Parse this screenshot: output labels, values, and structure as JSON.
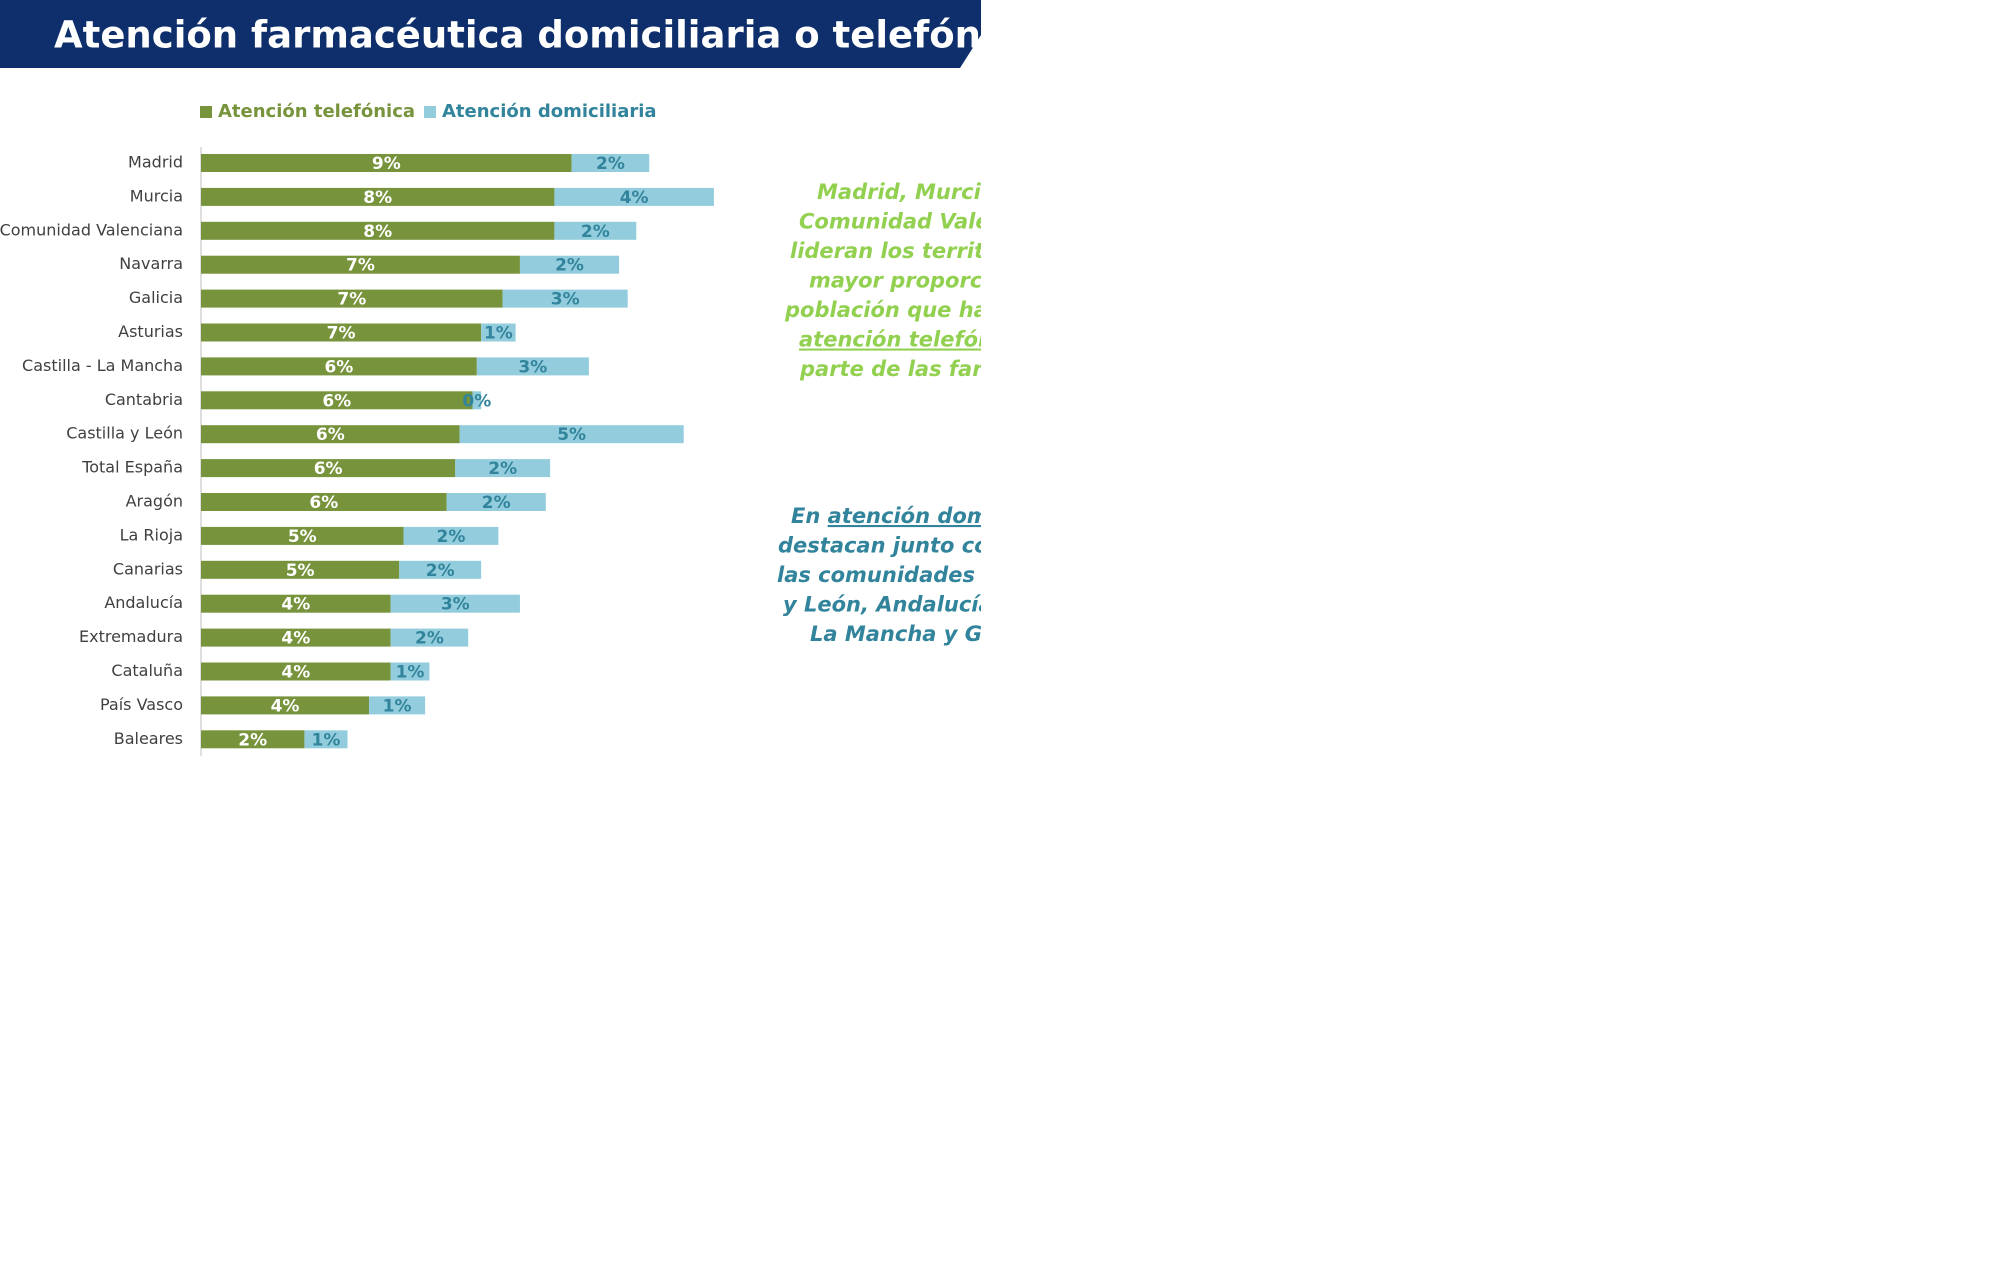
{
  "title": "Atención farmacéutica domiciliaria o telefónica",
  "chart_data": {
    "type": "stacked-barh",
    "categories": [
      "Madrid",
      "Murcia",
      "Comunidad Valenciana",
      "Navarra",
      "Galicia",
      "Asturias",
      "Castilla - La Mancha",
      "Cantabria",
      "Castilla y León",
      "Total España",
      "Aragón",
      "La Rioja",
      "Canarias",
      "Andalucía",
      "Extremadura",
      "Cataluña",
      "País Vasco",
      "Baleares"
    ],
    "series": [
      {
        "name": "Atención telefónica",
        "color": "#77933c",
        "values": [
          8.6,
          8.2,
          8.2,
          7.4,
          7.0,
          6.5,
          6.4,
          6.3,
          6.0,
          5.9,
          5.7,
          4.7,
          4.6,
          4.4,
          4.4,
          4.4,
          3.9,
          2.4
        ],
        "value_labels": [
          "9%",
          "8%",
          "8%",
          "7%",
          "7%",
          "7%",
          "6%",
          "6%",
          "6%",
          "6%",
          "6%",
          "5%",
          "5%",
          "4%",
          "4%",
          "4%",
          "4%",
          "2%"
        ]
      },
      {
        "name": "Atención domiciliaria",
        "color": "#93cddd",
        "values": [
          1.8,
          3.7,
          1.9,
          2.3,
          2.9,
          0.8,
          2.6,
          0.2,
          5.2,
          2.2,
          2.3,
          2.2,
          1.9,
          3.0,
          1.8,
          0.9,
          1.3,
          1.0
        ],
        "value_labels": [
          "2%",
          "4%",
          "2%",
          "2%",
          "3%",
          "1%",
          "3%",
          "0%",
          "5%",
          "2%",
          "2%",
          "2%",
          "2%",
          "3%",
          "2%",
          "1%",
          "1%",
          "1%"
        ]
      }
    ],
    "xlim": [
      0,
      12
    ]
  },
  "notes": [
    {
      "color": "#92d050",
      "lines": [
        [
          {
            "text": "Madrid, Murcia"
          }
        ],
        [
          {
            "text": "Comunidad Valen"
          }
        ],
        [
          {
            "text": "lideran los territori"
          }
        ],
        [
          {
            "text": "mayor proporció"
          }
        ],
        [
          {
            "text": "población que ha r"
          }
        ],
        [
          {
            "text": "atención telefónic",
            "underline": true
          }
        ],
        [
          {
            "text": "parte de las farm"
          }
        ]
      ]
    },
    {
      "color": "#31849b",
      "lines": [
        [
          {
            "text": "En "
          },
          {
            "text": "atención domic",
            "underline": true
          }
        ],
        [
          {
            "text": "destacan junto con "
          }
        ],
        [
          {
            "text": "las comunidades de"
          }
        ],
        [
          {
            "text": "y León, Andalucía, "
          }
        ],
        [
          {
            "text": "La Mancha y Gal"
          }
        ]
      ]
    }
  ]
}
